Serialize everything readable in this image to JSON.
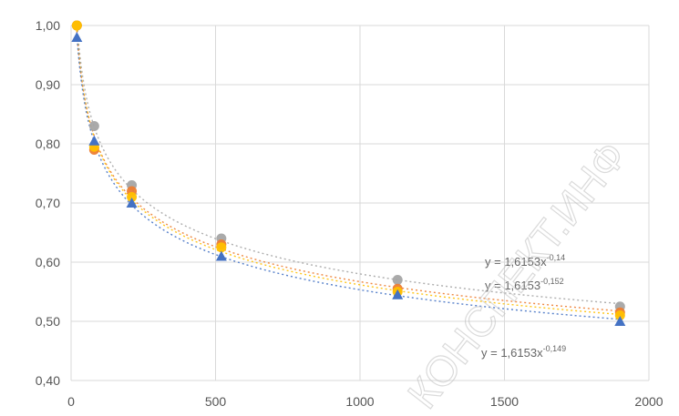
{
  "chart_data": {
    "type": "scatter",
    "xlim": [
      0,
      2000
    ],
    "ylim": [
      0.4,
      1.0
    ],
    "x_ticks": [
      "0",
      "500",
      "1000",
      "1500",
      "2000"
    ],
    "y_ticks": [
      "0,40",
      "0,50",
      "0,60",
      "0,70",
      "0,80",
      "0,90",
      "1,00"
    ],
    "grid": true,
    "trendline": "power",
    "series": [
      {
        "marker": "circle",
        "color": "#a5a5a5",
        "x": [
          20,
          80,
          210,
          520,
          1130,
          1900
        ],
        "y": [
          1.0,
          0.83,
          0.73,
          0.64,
          0.57,
          0.525
        ]
      },
      {
        "marker": "circle",
        "color": "#ed7d31",
        "x": [
          20,
          80,
          210,
          520,
          1130,
          1900
        ],
        "y": [
          1.0,
          0.79,
          0.72,
          0.63,
          0.555,
          0.515
        ]
      },
      {
        "marker": "circle",
        "color": "#ffc000",
        "x": [
          20,
          80,
          210,
          520,
          1130,
          1900
        ],
        "y": [
          1.0,
          0.795,
          0.71,
          0.625,
          0.55,
          0.51
        ]
      },
      {
        "marker": "triangle",
        "color": "#4472c4",
        "x": [
          20,
          80,
          210,
          520,
          1130,
          1900
        ],
        "y": [
          0.98,
          0.805,
          0.7,
          0.61,
          0.545,
          0.5
        ]
      }
    ],
    "equations": [
      {
        "text": "y = 1,6153x",
        "exp": "-0,14"
      },
      {
        "text": "y = 1,6153",
        "exp": "-0,152"
      },
      {
        "text": "y = 1,6153x",
        "exp": "-0,149"
      }
    ]
  },
  "watermark": "КОНСПЕКТ.ИНФ"
}
